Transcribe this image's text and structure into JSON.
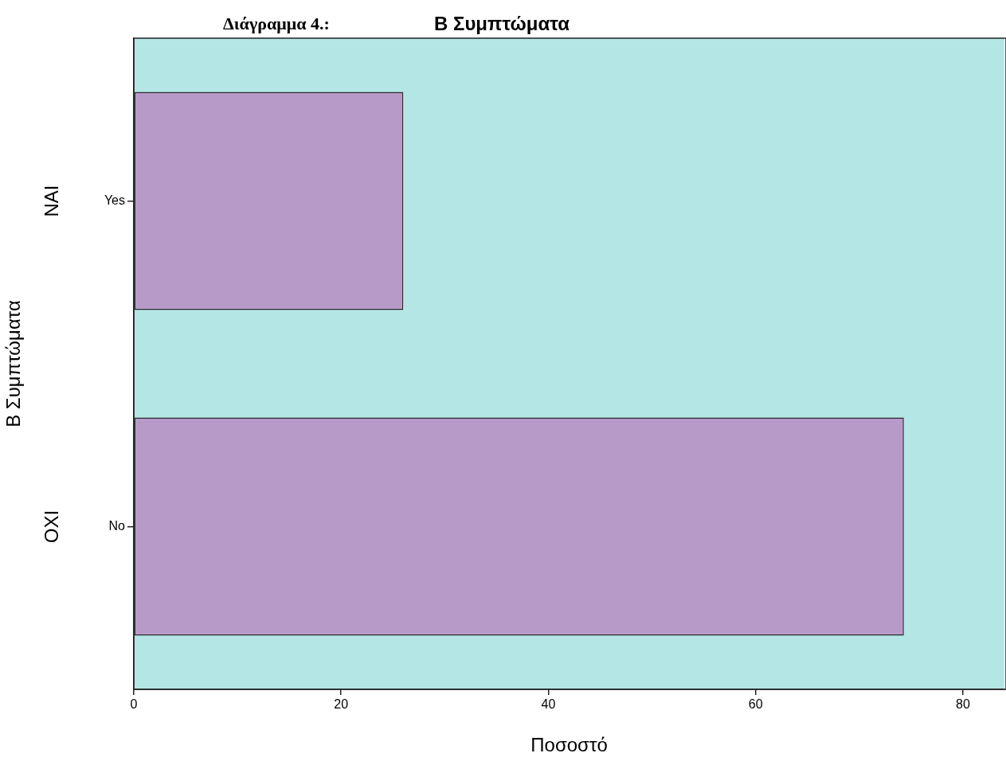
{
  "chart_data": {
    "type": "bar",
    "orientation": "horizontal",
    "title": "Β Συμπτώματα",
    "xlabel": "Ποσοστό",
    "ylabel": "Β Συμπτώματα",
    "categories": [
      "Yes",
      "No"
    ],
    "series": [
      {
        "color": "#b89ac9",
        "values": [
          26,
          74.3
        ]
      }
    ],
    "xlim": [
      0,
      84
    ],
    "xticks": [
      0,
      20,
      40,
      60,
      80
    ],
    "legend": false,
    "annotations": [
      "Διάγραμμα 4.:",
      "ΝΑΙ",
      "ΟΧΙ"
    ]
  }
}
